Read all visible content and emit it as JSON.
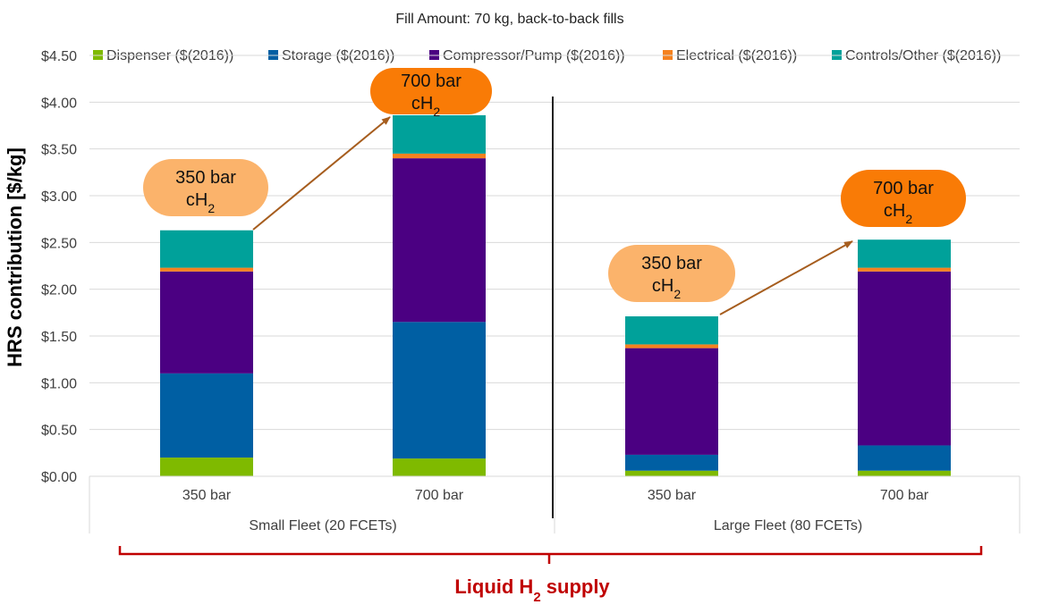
{
  "chart_data": {
    "type": "bar",
    "stacked": true,
    "title": "Fill Amount: 70 kg, back-to-back fills",
    "ylabel": "HRS contribution [$/kg]",
    "xlabel": "",
    "ylim": [
      0,
      4.5
    ],
    "ytick_step": 0.5,
    "ytick_labels": [
      "$0.00",
      "$0.50",
      "$1.00",
      "$1.50",
      "$2.00",
      "$2.50",
      "$3.00",
      "$3.50",
      "$4.00",
      "$4.50"
    ],
    "grid": true,
    "legend_position": "top",
    "categories": [
      "350 bar",
      "700 bar",
      "350 bar",
      "700 bar"
    ],
    "groups": [
      {
        "label": "Small Fleet (20 FCETs)",
        "categories": [
          0,
          1
        ]
      },
      {
        "label": "Large Fleet (80 FCETs)",
        "categories": [
          2,
          3
        ]
      }
    ],
    "series": [
      {
        "name": "Dispenser ($(2016))",
        "color": "#7fba00",
        "values": [
          0.2,
          0.19,
          0.06,
          0.06
        ]
      },
      {
        "name": "Storage ($(2016))",
        "color": "#005fa3",
        "values": [
          0.9,
          1.46,
          0.17,
          0.27
        ]
      },
      {
        "name": "Compressor/Pump ($(2016))",
        "color": "#4b0082",
        "values": [
          1.09,
          1.75,
          1.14,
          1.86
        ]
      },
      {
        "name": "Electrical ($(2016))",
        "color": "#f5821f",
        "values": [
          0.04,
          0.05,
          0.04,
          0.04
        ]
      },
      {
        "name": "Controls/Other ($(2016))",
        "color": "#00a19a",
        "values": [
          0.4,
          0.41,
          0.3,
          0.3
        ]
      }
    ],
    "annotations": [
      {
        "line1": "350 bar",
        "line2_main": "cH",
        "line2_sub": "2",
        "category": 0,
        "style": "light"
      },
      {
        "line1": "700 bar",
        "line2_main": "cH",
        "line2_sub": "2",
        "category": 1,
        "style": "dark"
      },
      {
        "line1": "350 bar",
        "line2_main": "cH",
        "line2_sub": "2",
        "category": 2,
        "style": "light"
      },
      {
        "line1": "700 bar",
        "line2_main": "cH",
        "line2_sub": "2",
        "category": 3,
        "style": "dark"
      }
    ],
    "supply_label": {
      "main": "Liquid H",
      "sub": "2",
      "tail": " supply"
    },
    "colors": {
      "bubble_light": "#fbb36b",
      "bubble_dark": "#f97b06",
      "arrow": "#a65d1e",
      "brace": "#c00000",
      "grid": "#d9d9d9"
    }
  }
}
